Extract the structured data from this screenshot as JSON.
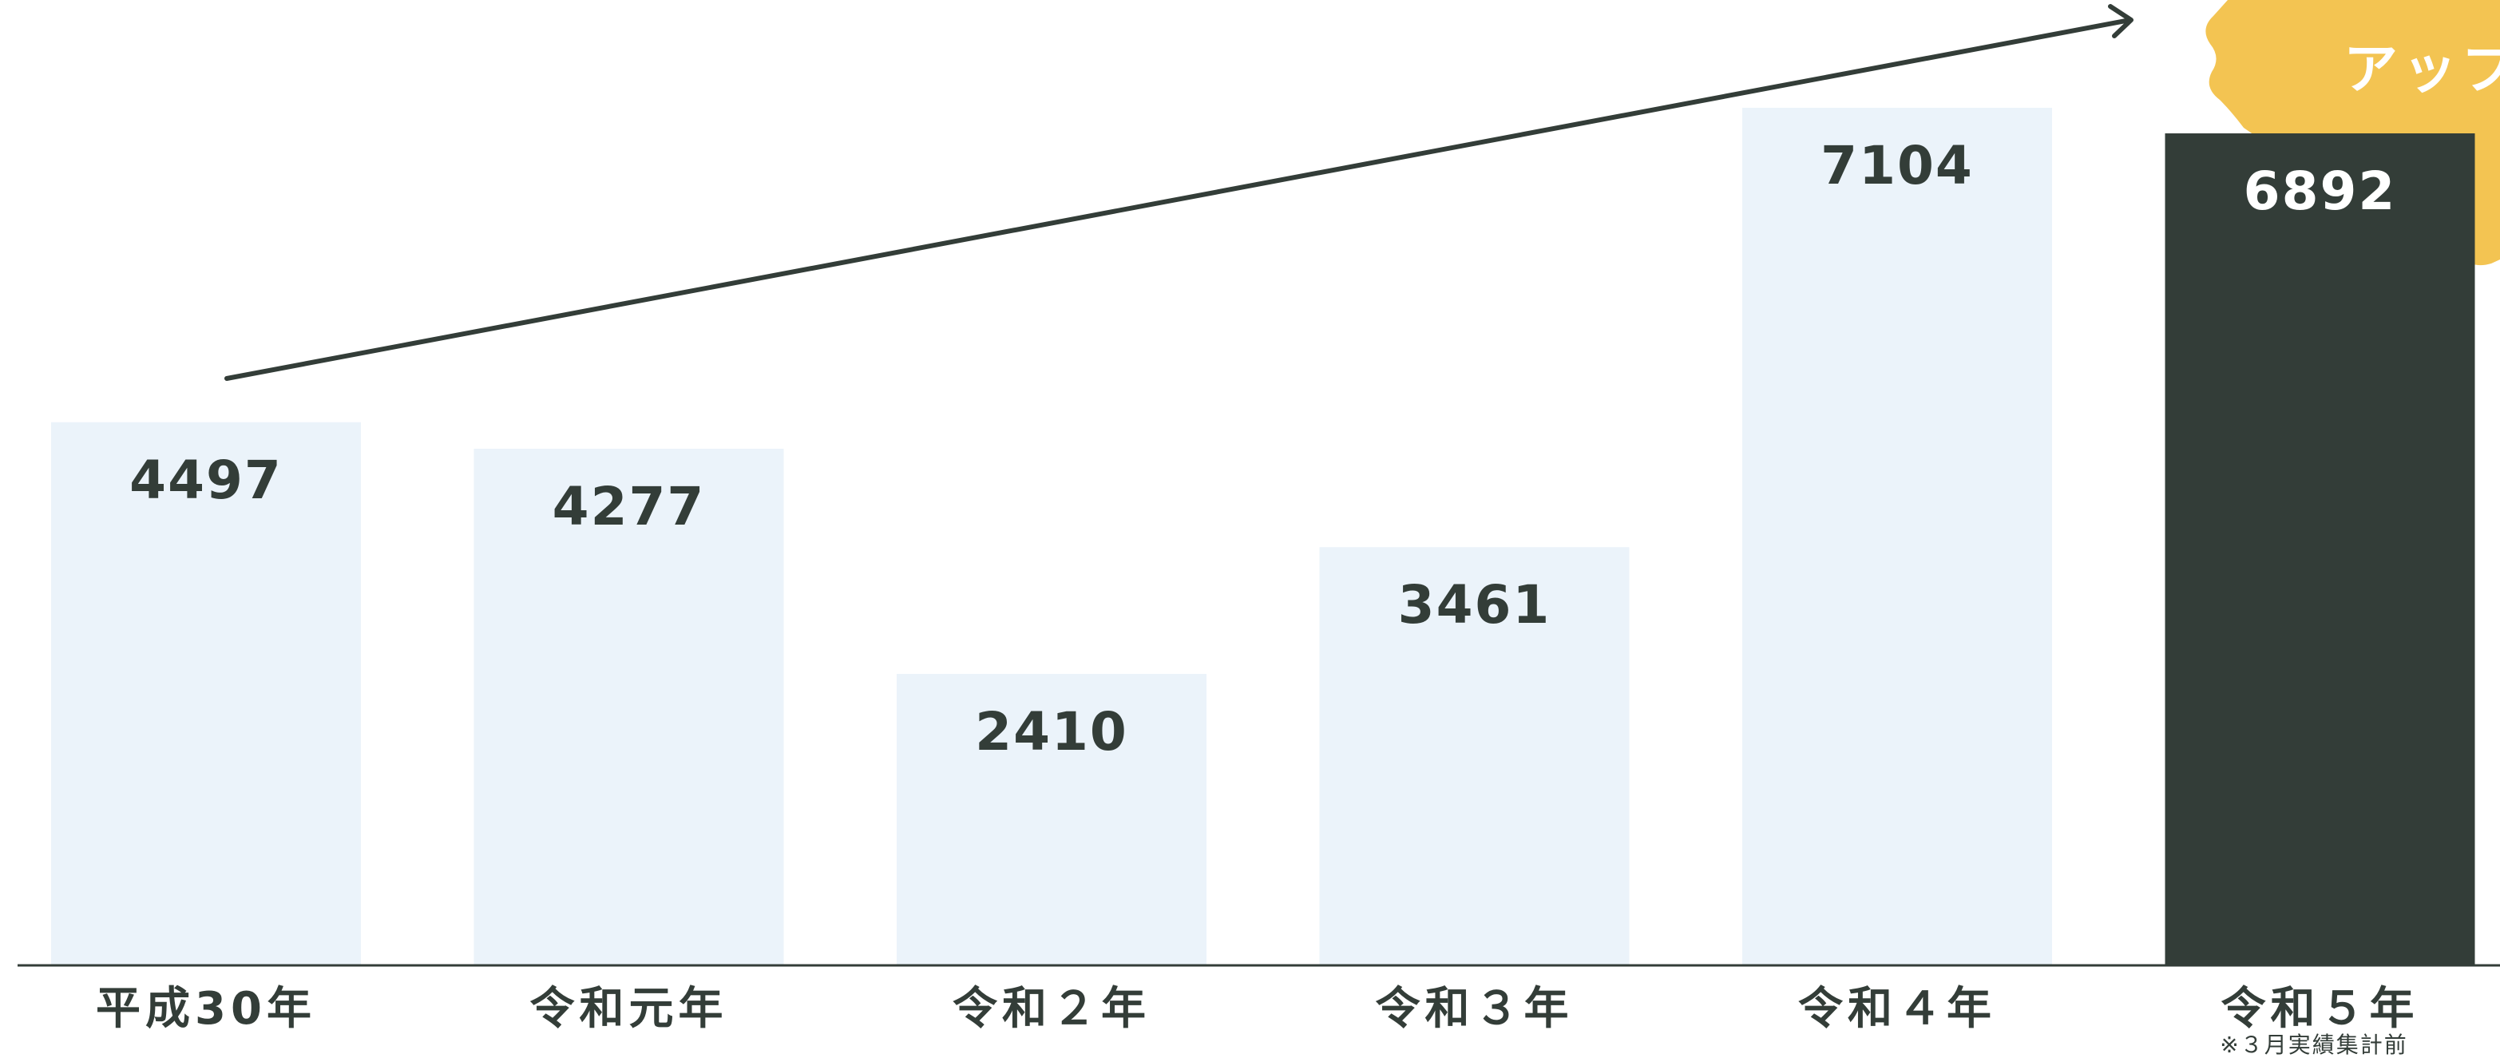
{
  "chart_data": {
    "type": "bar",
    "categories": [
      "平成30年",
      "令和元年",
      "令和２年",
      "令和３年",
      "令和４年",
      "令和５年"
    ],
    "values": [
      4497,
      4277,
      2410,
      3461,
      7104,
      6892
    ],
    "highlight_index": 5,
    "note": "※３月実績集計前",
    "badge_visible_text": "アップ",
    "trend_arrow": true,
    "colors": {
      "bar": "#ebf3fa",
      "highlight": "#333d38",
      "text": "#333d38",
      "highlight_text": "#ffffff",
      "badge": "#f3c452"
    }
  }
}
